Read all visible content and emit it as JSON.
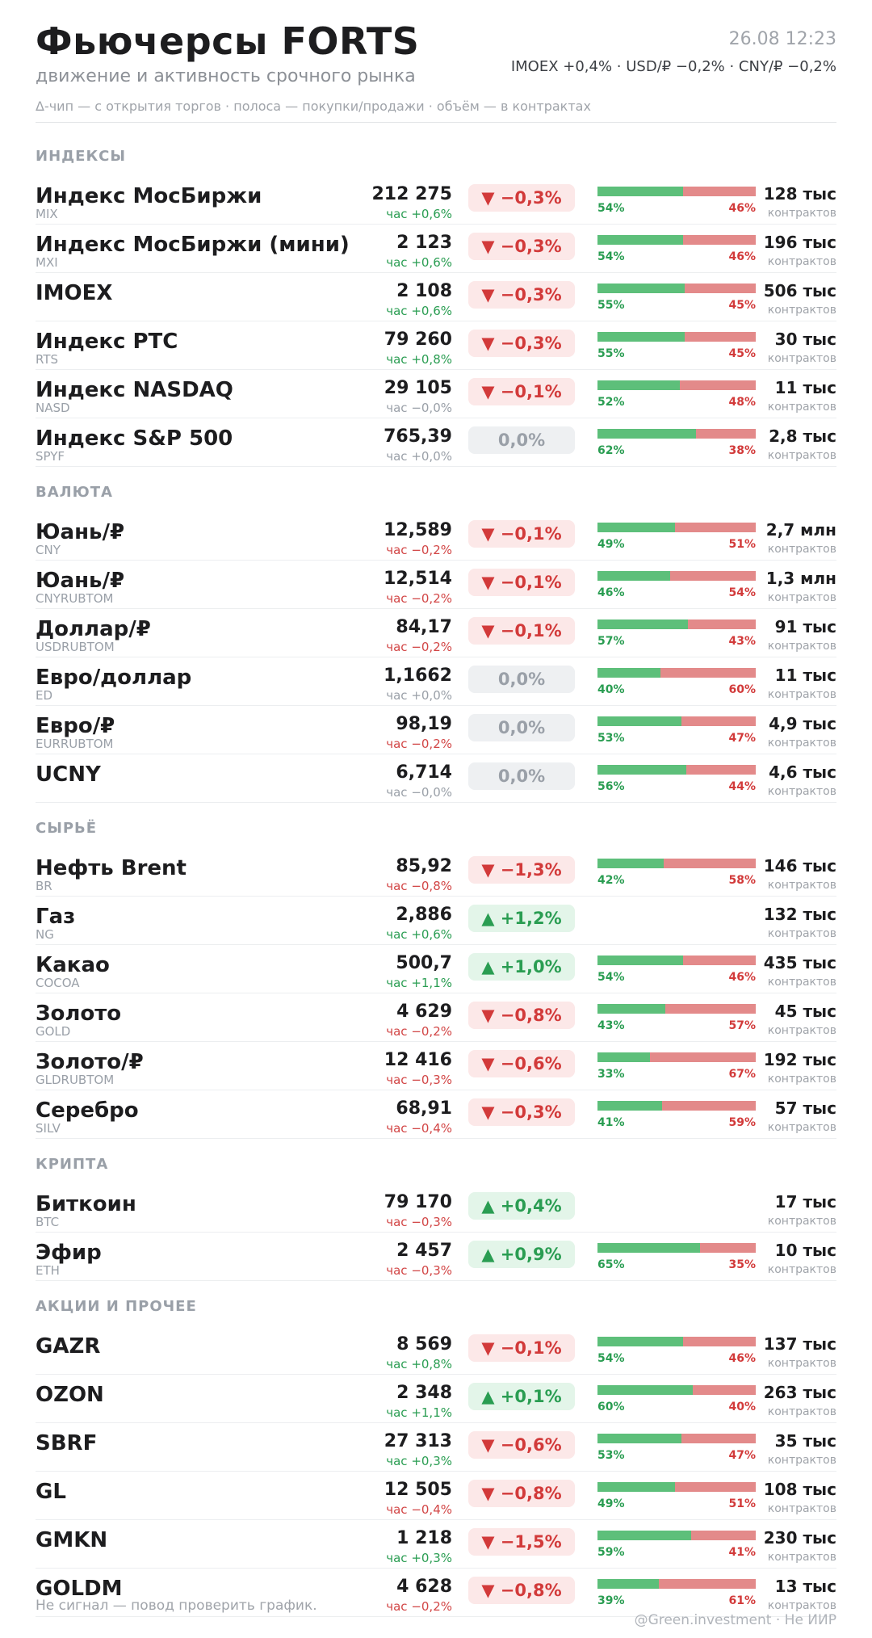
{
  "header": {
    "title": "Фьючерсы FORTS",
    "subtitle": "движение и активность срочного рынка",
    "legend": "Δ-чип — с открытия торгов  ·  полоса — покупки/продажи  ·  объём — в контрактах",
    "datetime": "26.08 12:23",
    "summary": "IMOEX +0,4%  ·  USD/₽ −0,2%  ·  CNY/₽ −0,2%"
  },
  "volume_unit": "контрактов",
  "sections": [
    {
      "title": "ИНДЕКСЫ",
      "rows": [
        {
          "name": "Индекс МосБиржи",
          "ticker": "MIX",
          "price": "212 275",
          "hour": "час +0,6%",
          "hour_dir": "pos",
          "change": "▼ −0,3%",
          "dir": "down",
          "buy": 54,
          "buy_label": "54%",
          "sell_label": "46%",
          "volume": "128 тыс"
        },
        {
          "name": "Индекс МосБиржи (мини)",
          "ticker": "MXI",
          "price": "2 123",
          "hour": "час +0,6%",
          "hour_dir": "pos",
          "change": "▼ −0,3%",
          "dir": "down",
          "buy": 54,
          "buy_label": "54%",
          "sell_label": "46%",
          "volume": "196 тыс"
        },
        {
          "name": "IMOEX",
          "ticker": "",
          "price": "2 108",
          "hour": "час +0,6%",
          "hour_dir": "pos",
          "change": "▼ −0,3%",
          "dir": "down",
          "buy": 55,
          "buy_label": "55%",
          "sell_label": "45%",
          "volume": "506 тыс"
        },
        {
          "name": "Индекс РТС",
          "ticker": "RTS",
          "price": "79 260",
          "hour": "час +0,8%",
          "hour_dir": "pos",
          "change": "▼ −0,3%",
          "dir": "down",
          "buy": 55,
          "buy_label": "55%",
          "sell_label": "45%",
          "volume": "30 тыс"
        },
        {
          "name": "Индекс NASDAQ",
          "ticker": "NASD",
          "price": "29 105",
          "hour": "час −0,0%",
          "hour_dir": "zero",
          "change": "▼ −0,1%",
          "dir": "down",
          "buy": 52,
          "buy_label": "52%",
          "sell_label": "48%",
          "volume": "11 тыс"
        },
        {
          "name": "Индекс S&P 500",
          "ticker": "SPYF",
          "price": "765,39",
          "hour": "час +0,0%",
          "hour_dir": "zero",
          "change": "0,0%",
          "dir": "flat",
          "buy": 62,
          "buy_label": "62%",
          "sell_label": "38%",
          "volume": "2,8 тыс"
        }
      ]
    },
    {
      "title": "ВАЛЮТА",
      "rows": [
        {
          "name": "Юань/₽",
          "ticker": "CNY",
          "price": "12,589",
          "hour": "час −0,2%",
          "hour_dir": "neg",
          "change": "▼ −0,1%",
          "dir": "down",
          "buy": 49,
          "buy_label": "49%",
          "sell_label": "51%",
          "volume": "2,7 млн"
        },
        {
          "name": "Юань/₽",
          "ticker": "CNYRUBTOM",
          "price": "12,514",
          "hour": "час −0,2%",
          "hour_dir": "neg",
          "change": "▼ −0,1%",
          "dir": "down",
          "buy": 46,
          "buy_label": "46%",
          "sell_label": "54%",
          "volume": "1,3 млн"
        },
        {
          "name": "Доллар/₽",
          "ticker": "USDRUBTOM",
          "price": "84,17",
          "hour": "час −0,2%",
          "hour_dir": "neg",
          "change": "▼ −0,1%",
          "dir": "down",
          "buy": 57,
          "buy_label": "57%",
          "sell_label": "43%",
          "volume": "91 тыс"
        },
        {
          "name": "Евро/доллар",
          "ticker": "ED",
          "price": "1,1662",
          "hour": "час +0,0%",
          "hour_dir": "zero",
          "change": "0,0%",
          "dir": "flat",
          "buy": 40,
          "buy_label": "40%",
          "sell_label": "60%",
          "volume": "11 тыс"
        },
        {
          "name": "Евро/₽",
          "ticker": "EURRUBTOM",
          "price": "98,19",
          "hour": "час −0,2%",
          "hour_dir": "neg",
          "change": "0,0%",
          "dir": "flat",
          "buy": 53,
          "buy_label": "53%",
          "sell_label": "47%",
          "volume": "4,9 тыс"
        },
        {
          "name": "UCNY",
          "ticker": "",
          "price": "6,714",
          "hour": "час −0,0%",
          "hour_dir": "zero",
          "change": "0,0%",
          "dir": "flat",
          "buy": 56,
          "buy_label": "56%",
          "sell_label": "44%",
          "volume": "4,6 тыс"
        }
      ]
    },
    {
      "title": "СЫРЬЁ",
      "rows": [
        {
          "name": "Нефть Brent",
          "ticker": "BR",
          "price": "85,92",
          "hour": "час −0,8%",
          "hour_dir": "neg",
          "change": "▼ −1,3%",
          "dir": "down",
          "buy": 42,
          "buy_label": "42%",
          "sell_label": "58%",
          "volume": "146 тыс"
        },
        {
          "name": "Газ",
          "ticker": "NG",
          "price": "2,886",
          "hour": "час +0,6%",
          "hour_dir": "pos",
          "change": "▲ +1,2%",
          "dir": "up",
          "buy": null,
          "buy_label": "",
          "sell_label": "",
          "volume": "132 тыс"
        },
        {
          "name": "Какао",
          "ticker": "COCOA",
          "price": "500,7",
          "hour": "час +1,1%",
          "hour_dir": "pos",
          "change": "▲ +1,0%",
          "dir": "up",
          "buy": 54,
          "buy_label": "54%",
          "sell_label": "46%",
          "volume": "435 тыс"
        },
        {
          "name": "Золото",
          "ticker": "GOLD",
          "price": "4 629",
          "hour": "час −0,2%",
          "hour_dir": "neg",
          "change": "▼ −0,8%",
          "dir": "down",
          "buy": 43,
          "buy_label": "43%",
          "sell_label": "57%",
          "volume": "45 тыс"
        },
        {
          "name": "Золото/₽",
          "ticker": "GLDRUBTOM",
          "price": "12 416",
          "hour": "час −0,3%",
          "hour_dir": "neg",
          "change": "▼ −0,6%",
          "dir": "down",
          "buy": 33,
          "buy_label": "33%",
          "sell_label": "67%",
          "volume": "192 тыс"
        },
        {
          "name": "Серебро",
          "ticker": "SILV",
          "price": "68,91",
          "hour": "час −0,4%",
          "hour_dir": "neg",
          "change": "▼ −0,3%",
          "dir": "down",
          "buy": 41,
          "buy_label": "41%",
          "sell_label": "59%",
          "volume": "57 тыс"
        }
      ]
    },
    {
      "title": "КРИПТА",
      "rows": [
        {
          "name": "Биткоин",
          "ticker": "BTC",
          "price": "79 170",
          "hour": "час −0,3%",
          "hour_dir": "neg",
          "change": "▲ +0,4%",
          "dir": "up",
          "buy": null,
          "buy_label": "",
          "sell_label": "",
          "volume": "17 тыс"
        },
        {
          "name": "Эфир",
          "ticker": "ETH",
          "price": "2 457",
          "hour": "час −0,3%",
          "hour_dir": "neg",
          "change": "▲ +0,9%",
          "dir": "up",
          "buy": 65,
          "buy_label": "65%",
          "sell_label": "35%",
          "volume": "10 тыс"
        }
      ]
    },
    {
      "title": "АКЦИИ И ПРОЧЕЕ",
      "rows": [
        {
          "name": "GAZR",
          "ticker": "",
          "price": "8 569",
          "hour": "час +0,8%",
          "hour_dir": "pos",
          "change": "▼ −0,1%",
          "dir": "down",
          "buy": 54,
          "buy_label": "54%",
          "sell_label": "46%",
          "volume": "137 тыс"
        },
        {
          "name": "OZON",
          "ticker": "",
          "price": "2 348",
          "hour": "час +1,1%",
          "hour_dir": "pos",
          "change": "▲ +0,1%",
          "dir": "up",
          "buy": 60,
          "buy_label": "60%",
          "sell_label": "40%",
          "volume": "263 тыс"
        },
        {
          "name": "SBRF",
          "ticker": "",
          "price": "27 313",
          "hour": "час +0,3%",
          "hour_dir": "pos",
          "change": "▼ −0,6%",
          "dir": "down",
          "buy": 53,
          "buy_label": "53%",
          "sell_label": "47%",
          "volume": "35 тыс"
        },
        {
          "name": "GL",
          "ticker": "",
          "price": "12 505",
          "hour": "час −0,4%",
          "hour_dir": "neg",
          "change": "▼ −0,8%",
          "dir": "down",
          "buy": 49,
          "buy_label": "49%",
          "sell_label": "51%",
          "volume": "108 тыс"
        },
        {
          "name": "GMKN",
          "ticker": "",
          "price": "1 218",
          "hour": "час +0,3%",
          "hour_dir": "pos",
          "change": "▼ −1,5%",
          "dir": "down",
          "buy": 59,
          "buy_label": "59%",
          "sell_label": "41%",
          "volume": "230 тыс"
        },
        {
          "name": "GOLDM",
          "ticker": "",
          "price": "4 628",
          "hour": "час −0,2%",
          "hour_dir": "neg",
          "change": "▼ −0,8%",
          "dir": "down",
          "buy": 39,
          "buy_label": "39%",
          "sell_label": "61%",
          "volume": "13 тыс"
        }
      ]
    }
  ],
  "footer": {
    "note": "Не сигнал — повод проверить график.",
    "credit": "@Green.investment · Не ИИР"
  }
}
